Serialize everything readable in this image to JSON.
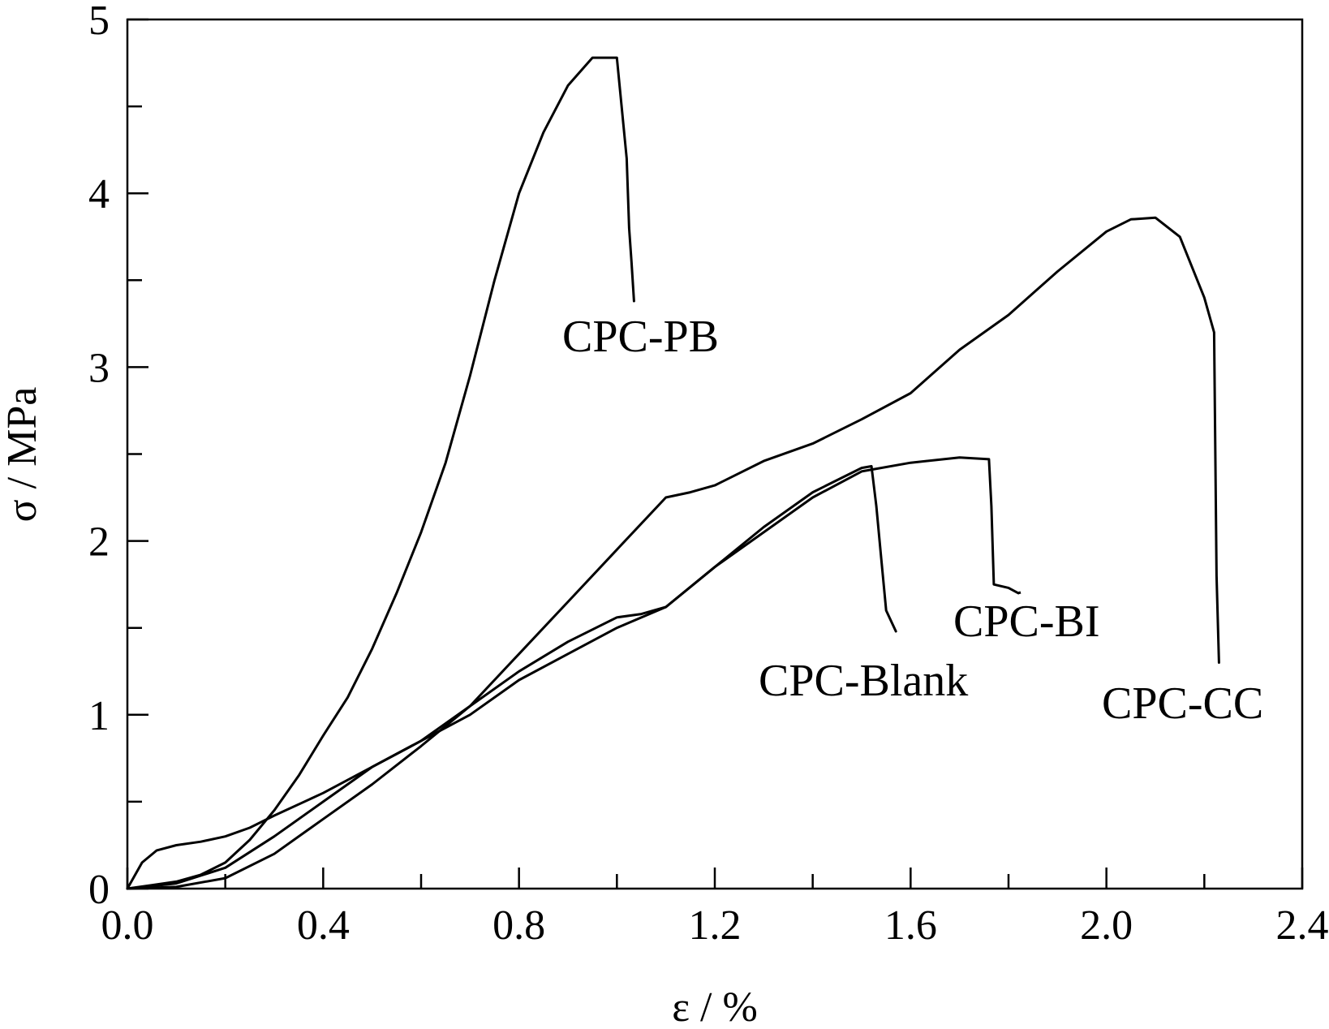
{
  "chart_data": {
    "type": "line",
    "title": "",
    "xlabel": "ε / %",
    "ylabel": "σ / MPa",
    "xlim": [
      0.0,
      2.4
    ],
    "ylim": [
      0,
      5
    ],
    "x_ticks": [
      "0.0",
      "0.4",
      "0.8",
      "1.2",
      "1.6",
      "2.0",
      "2.4"
    ],
    "y_ticks": [
      "0",
      "1",
      "2",
      "3",
      "4",
      "5"
    ],
    "grid": false,
    "legend": "none",
    "series": [
      {
        "name": "CPC-PB",
        "x": [
          0.0,
          0.05,
          0.1,
          0.15,
          0.2,
          0.25,
          0.3,
          0.35,
          0.4,
          0.45,
          0.5,
          0.55,
          0.6,
          0.65,
          0.7,
          0.75,
          0.8,
          0.85,
          0.9,
          0.95,
          1.0,
          1.02,
          1.025,
          1.03,
          1.035
        ],
        "y": [
          0.0,
          0.02,
          0.04,
          0.08,
          0.15,
          0.28,
          0.45,
          0.65,
          0.88,
          1.1,
          1.38,
          1.7,
          2.05,
          2.45,
          2.95,
          3.5,
          4.0,
          4.35,
          4.62,
          4.78,
          4.78,
          4.2,
          3.8,
          3.6,
          3.38
        ]
      },
      {
        "name": "CPC-CC",
        "x": [
          0.0,
          0.03,
          0.06,
          0.1,
          0.15,
          0.2,
          0.25,
          0.3,
          0.4,
          0.5,
          0.6,
          0.7,
          0.8,
          0.9,
          1.0,
          1.1,
          1.15,
          1.2,
          1.3,
          1.4,
          1.5,
          1.6,
          1.7,
          1.8,
          1.9,
          2.0,
          2.05,
          2.1,
          2.15,
          2.2,
          2.22,
          2.225,
          2.23
        ],
        "y": [
          0.0,
          0.15,
          0.22,
          0.25,
          0.27,
          0.3,
          0.35,
          0.42,
          0.55,
          0.7,
          0.85,
          1.05,
          1.35,
          1.65,
          1.95,
          2.25,
          2.28,
          2.32,
          2.46,
          2.56,
          2.7,
          2.85,
          3.1,
          3.3,
          3.55,
          3.78,
          3.85,
          3.86,
          3.75,
          3.4,
          3.2,
          1.8,
          1.3
        ]
      },
      {
        "name": "CPC-BI",
        "x": [
          0.0,
          0.1,
          0.2,
          0.3,
          0.4,
          0.5,
          0.6,
          0.7,
          0.8,
          0.9,
          1.0,
          1.1,
          1.2,
          1.3,
          1.4,
          1.5,
          1.6,
          1.7,
          1.76,
          1.765,
          1.77,
          1.8,
          1.82
        ],
        "y": [
          0.0,
          0.03,
          0.12,
          0.3,
          0.5,
          0.7,
          0.85,
          1.0,
          1.2,
          1.35,
          1.5,
          1.62,
          1.85,
          2.05,
          2.25,
          2.4,
          2.45,
          2.48,
          2.47,
          2.2,
          1.75,
          1.73,
          1.7
        ]
      },
      {
        "name": "CPC-Blank",
        "x": [
          0.0,
          0.1,
          0.2,
          0.3,
          0.4,
          0.5,
          0.6,
          0.7,
          0.8,
          0.9,
          1.0,
          1.05,
          1.1,
          1.2,
          1.3,
          1.4,
          1.5,
          1.52,
          1.53,
          1.54,
          1.55,
          1.57
        ],
        "y": [
          0.0,
          0.01,
          0.06,
          0.2,
          0.4,
          0.6,
          0.82,
          1.05,
          1.25,
          1.42,
          1.56,
          1.58,
          1.62,
          1.85,
          2.08,
          2.28,
          2.42,
          2.43,
          2.2,
          1.9,
          1.6,
          1.48
        ]
      }
    ],
    "annotations": [
      {
        "text": "CPC-PB",
        "target": "CPC-PB"
      },
      {
        "text": "CPC-CC",
        "target": "CPC-CC"
      },
      {
        "text": "CPC-BI",
        "target": "CPC-BI"
      },
      {
        "text": "CPC-Blank",
        "target": "CPC-Blank"
      }
    ]
  }
}
